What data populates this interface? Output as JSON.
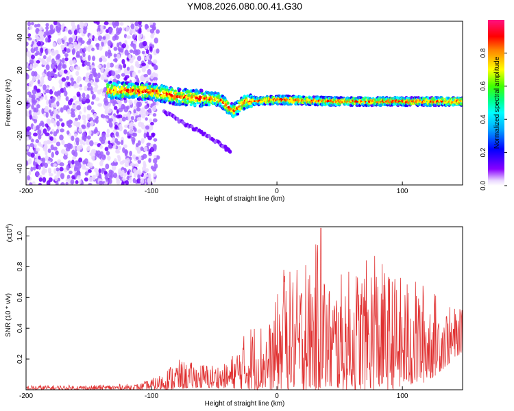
{
  "title": "YM08.2026.080.00.41.G30",
  "chart_data": [
    {
      "type": "heatmap",
      "name": "spectrogram",
      "xlabel": "Height of straight line (km)",
      "ylabel": "Frequency (Hz)",
      "xlim": [
        -200,
        148
      ],
      "ylim": [
        -50,
        50
      ],
      "xticks": [
        -200,
        -100,
        0,
        100
      ],
      "yticks": [
        -40,
        -20,
        0,
        20,
        40
      ],
      "colorbar": {
        "label": "Normalized spectral amplitude",
        "range": [
          0,
          1
        ],
        "ticks": [
          0.0,
          0.2,
          0.4,
          0.6,
          0.8
        ],
        "tick_labels": [
          "0.0",
          "0.2",
          "0.4",
          "0.6",
          "0.8"
        ]
      },
      "features": [
        {
          "description": "scattered noise",
          "x_range": [
            -200,
            -95
          ],
          "freq_range": [
            -50,
            50
          ],
          "amplitude": [
            0.05,
            0.3
          ]
        },
        {
          "description": "main signal band",
          "x_range": [
            -135,
            148
          ],
          "freq_center": [
            [
              -135,
              8
            ],
            [
              -100,
              7
            ],
            [
              -80,
              4
            ],
            [
              -60,
              3
            ],
            [
              -45,
              2
            ],
            [
              -35,
              -5
            ],
            [
              -25,
              1
            ],
            [
              0,
              2
            ],
            [
              50,
              1
            ],
            [
              100,
              1
            ],
            [
              148,
              1
            ]
          ],
          "amplitude": [
            0.3,
            1.0
          ]
        },
        {
          "description": "secondary descending branch",
          "points": [
            [
              -90,
              -5
            ],
            [
              -75,
              -12
            ],
            [
              -60,
              -18
            ],
            [
              -45,
              -25
            ],
            [
              -37,
              -30
            ]
          ],
          "amplitude": [
            0.1,
            0.2
          ]
        }
      ]
    },
    {
      "type": "line",
      "name": "snr",
      "xlabel": "Height of straight line (km)",
      "ylabel": "SNR (10 * v/v)",
      "y_multiplier": "(x10^4)",
      "y_multiplier_base": "(x10",
      "y_multiplier_exp": "4",
      "xlim": [
        -200,
        148
      ],
      "ylim": [
        0,
        1.06
      ],
      "xticks": [
        -200,
        -100,
        0,
        100
      ],
      "yticks": [
        0.2,
        0.4,
        0.6,
        0.8,
        1.0
      ],
      "envelope": [
        {
          "x": -200,
          "min": 0.0,
          "max": 0.03
        },
        {
          "x": -150,
          "min": 0.0,
          "max": 0.03
        },
        {
          "x": -110,
          "min": 0.0,
          "max": 0.04
        },
        {
          "x": -95,
          "min": 0.0,
          "max": 0.09
        },
        {
          "x": -80,
          "min": 0.0,
          "max": 0.2
        },
        {
          "x": -70,
          "min": 0.01,
          "max": 0.18
        },
        {
          "x": -50,
          "min": 0.01,
          "max": 0.17
        },
        {
          "x": -40,
          "min": 0.01,
          "max": 0.17
        },
        {
          "x": -20,
          "min": 0.0,
          "max": 0.45
        },
        {
          "x": -5,
          "min": 0.0,
          "max": 0.45
        },
        {
          "x": 5,
          "min": 0.0,
          "max": 0.78
        },
        {
          "x": 25,
          "min": 0.0,
          "max": 0.8
        },
        {
          "x": 35,
          "min": 0.0,
          "max": 1.05
        },
        {
          "x": 40,
          "min": 0.0,
          "max": 0.7
        },
        {
          "x": 60,
          "min": 0.0,
          "max": 0.8
        },
        {
          "x": 78,
          "min": 0.0,
          "max": 0.87
        },
        {
          "x": 95,
          "min": 0.0,
          "max": 0.75
        },
        {
          "x": 120,
          "min": 0.05,
          "max": 0.7
        },
        {
          "x": 135,
          "min": 0.15,
          "max": 0.55
        },
        {
          "x": 148,
          "min": 0.25,
          "max": 0.52
        }
      ],
      "peaks": [
        {
          "x": 35.0,
          "y": 1.05
        },
        {
          "x": 78.0,
          "y": 0.87
        },
        {
          "x": 23.0,
          "y": 0.81
        },
        {
          "x": 5.5,
          "y": 0.78
        }
      ],
      "color": "#e03030"
    }
  ],
  "colors": {
    "line": "#e03030",
    "axes": "#000000",
    "background": "#ffffff"
  }
}
